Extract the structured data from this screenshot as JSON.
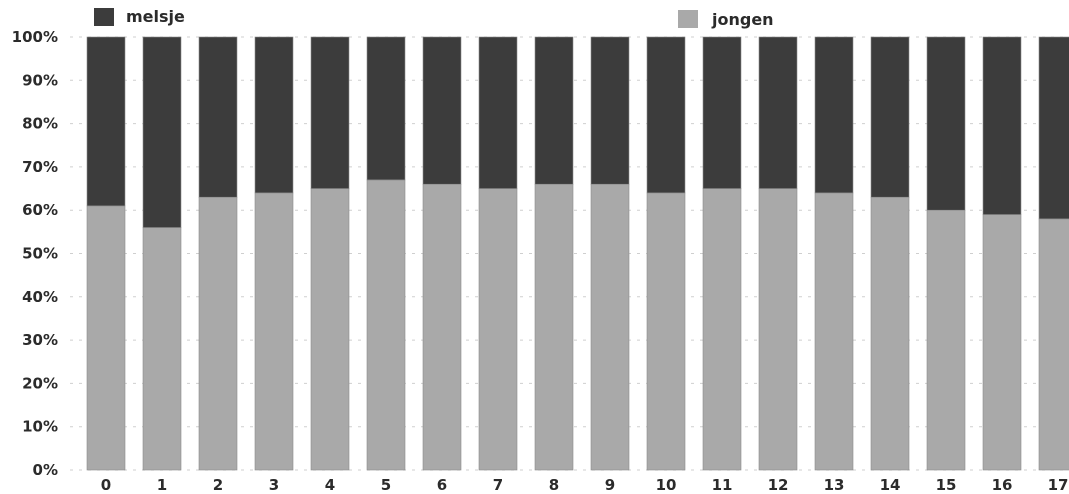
{
  "chart_data": {
    "type": "bar",
    "stacked": true,
    "percent": true,
    "categories": [
      "0",
      "1",
      "2",
      "3",
      "4",
      "5",
      "6",
      "7",
      "8",
      "9",
      "10",
      "11",
      "12",
      "13",
      "14",
      "15",
      "16",
      "17"
    ],
    "series": [
      {
        "name": "jongen",
        "color": "#a9a9a9",
        "values": [
          61,
          56,
          63,
          64,
          65,
          67,
          66,
          65,
          66,
          66,
          64,
          65,
          65,
          64,
          63,
          60,
          59,
          58
        ]
      },
      {
        "name": "melsje",
        "color": "#3c3c3c",
        "values": [
          39,
          44,
          37,
          36,
          35,
          33,
          34,
          35,
          34,
          34,
          36,
          35,
          35,
          36,
          37,
          40,
          41,
          42
        ]
      }
    ],
    "ylim": [
      0,
      100
    ],
    "yticks": [
      "0%",
      "10%",
      "20%",
      "30%",
      "40%",
      "50%",
      "60%",
      "70%",
      "80%",
      "90%",
      "100%"
    ],
    "grid": true,
    "legend": "top"
  }
}
